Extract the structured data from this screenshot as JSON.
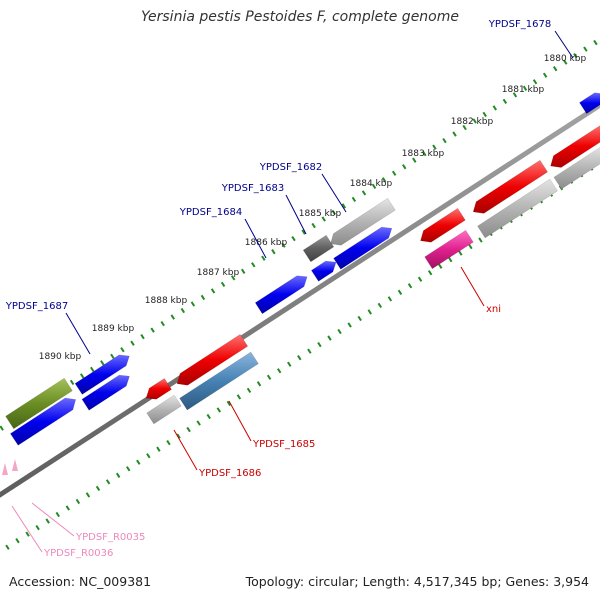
{
  "title": "Yersinia pestis Pestoides F, complete genome",
  "footer": {
    "accession": "Accession: NC_009381",
    "topology": "Topology: circular; Length: 4,517,345 bp; Genes: 3,954"
  },
  "colors": {
    "forward_gene": "#0000ee",
    "reverse_gene": "#ee0000",
    "gray_gene": "#b4b4b4",
    "olive_gene": "#6b8e23",
    "steel_gene": "#4682b4",
    "magenta_gene": "#e0208f",
    "rna_gene": "#f4a6c8",
    "backbone": "#808080",
    "tick": "#228b22",
    "forward_label": "#00008b",
    "reverse_label": "#cc0000",
    "rna_label": "#ee88bb"
  },
  "ruler": [
    {
      "label": "1880 kbp"
    },
    {
      "label": "1881 kbp"
    },
    {
      "label": "1882 kbp"
    },
    {
      "label": "1883 kbp"
    },
    {
      "label": "1884 kbp"
    },
    {
      "label": "1885 kbp"
    },
    {
      "label": "1886 kbp"
    },
    {
      "label": "1887 kbp"
    },
    {
      "label": "1888 kbp"
    },
    {
      "label": "1889 kbp"
    },
    {
      "label": "1890 kbp"
    }
  ],
  "gene_labels": [
    {
      "text": "YPDSF_1678"
    },
    {
      "text": "YPDSF_1682"
    },
    {
      "text": "YPDSF_1683"
    },
    {
      "text": "YPDSF_1684"
    },
    {
      "text": "YPDSF_1687"
    },
    {
      "text": "xni"
    },
    {
      "text": "YPDSF_1685"
    },
    {
      "text": "YPDSF_1686"
    },
    {
      "text": "YPDSF_R0035"
    },
    {
      "text": "YPDSF_R0036"
    }
  ]
}
